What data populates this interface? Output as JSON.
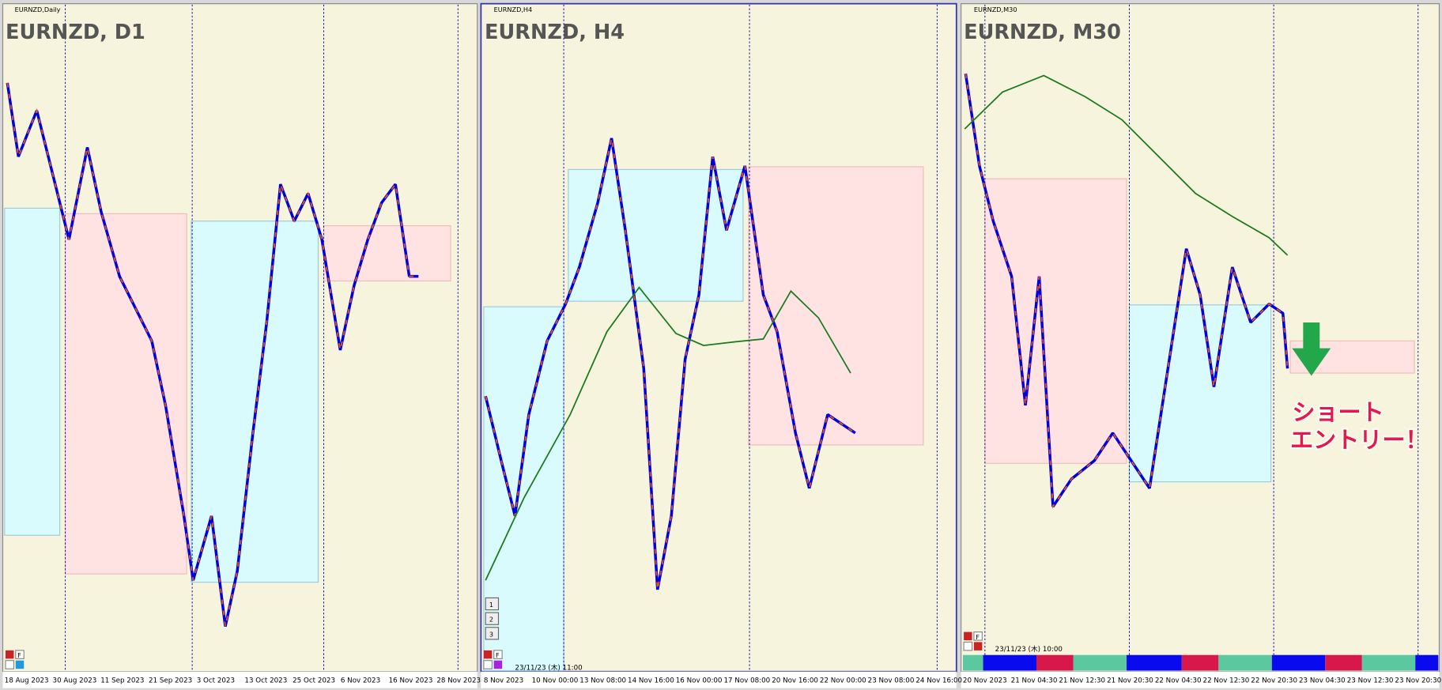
{
  "panels": [
    {
      "window": "EURNZD,Daily",
      "title": "EURNZD, D1",
      "button": "F",
      "x_labels": [
        "18 Aug 2023",
        "30 Aug 2023",
        "11 Sep 2023",
        "21 Sep 2023",
        "3 Oct 2023",
        "13 Oct 2023",
        "25 Oct 2023",
        "6 Nov 2023",
        "16 Nov 2023",
        "28 Nov 2023"
      ]
    },
    {
      "window": "EURNZD,H4",
      "title": "EURNZD, H4",
      "button": "F",
      "x_labels": [
        "8 Nov 2023",
        "10 Nov 00:00",
        "13 Nov 08:00",
        "14 Nov 16:00",
        "16 Nov 00:00",
        "17 Nov 08:00",
        "20 Nov 16:00",
        "22 Nov 00:00",
        "23 Nov 08:00",
        "24 Nov 16:00"
      ],
      "buttons": [
        "1",
        "2",
        "3"
      ],
      "timestamp": "23/11/23 (木) 11:00"
    },
    {
      "window": "EURNZD,M30",
      "title": "EURNZD, M30",
      "button": "F",
      "x_labels": [
        "20 Nov 2023",
        "21 Nov 04:30",
        "21 Nov 12:30",
        "21 Nov 20:30",
        "22 Nov 04:30",
        "22 Nov 12:30",
        "22 Nov 20:30",
        "23 Nov 04:30",
        "23 Nov 12:30",
        "23 Nov 20:30"
      ],
      "timestamp": "23/11/23 (木) 10:00",
      "annotation": [
        "ショート",
        "エントリー！"
      ]
    }
  ]
}
